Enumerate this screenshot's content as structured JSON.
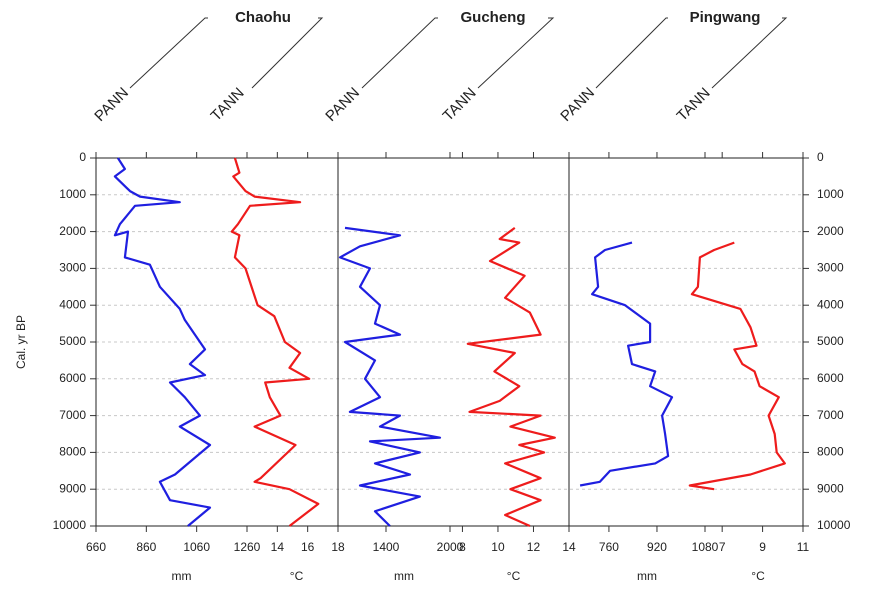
{
  "y_axis": {
    "label": "Cal. yr BP",
    "ylim": [
      0,
      10000
    ],
    "yticks": [
      0,
      1000,
      2000,
      3000,
      4000,
      5000,
      6000,
      7000,
      8000,
      9000,
      10000
    ],
    "grid": true
  },
  "site_labels": [
    "Chaohu",
    "Gucheng",
    "Pingwang"
  ],
  "chart_data": [
    {
      "type": "line",
      "title": "PANN",
      "x_label": "mm",
      "color": "#1f1fe0",
      "xlim": [
        660,
        1260
      ],
      "xticks": [
        660,
        860,
        1060,
        1260
      ],
      "ages": [
        0,
        300,
        500,
        900,
        1050,
        1200,
        1300,
        1800,
        2100,
        2000,
        2700,
        2900,
        3500,
        4100,
        4400,
        5200,
        5600,
        5900,
        6100,
        6500,
        7000,
        7300,
        7800,
        8600,
        8800,
        9300,
        9500,
        10000
      ],
      "values": [
        747,
        775,
        735,
        795,
        835,
        993,
        815,
        755,
        735,
        787,
        775,
        874,
        914,
        993,
        1013,
        1093,
        1033,
        1093,
        954,
        1013,
        1073,
        993,
        1113,
        974,
        914,
        954,
        1113,
        1025
      ]
    },
    {
      "type": "line",
      "title": "TANN",
      "x_label": "°C",
      "color": "#ee1c1c",
      "xlim": [
        12,
        18
      ],
      "xticks": [
        14,
        16,
        18
      ],
      "ages": [
        0,
        400,
        500,
        900,
        1050,
        1200,
        1300,
        1800,
        2000,
        2100,
        2700,
        3000,
        4000,
        4300,
        5000,
        5300,
        5700,
        6000,
        6100,
        6500,
        7000,
        7300,
        7800,
        8700,
        8800,
        9000,
        9400,
        10000
      ],
      "values": [
        11.2,
        11.5,
        11.1,
        11.9,
        12.5,
        15.5,
        12.2,
        11.4,
        11.0,
        11.5,
        11.2,
        11.9,
        12.7,
        13.8,
        14.5,
        15.5,
        14.8,
        16.1,
        13.2,
        13.5,
        14.2,
        12.5,
        15.2,
        12.9,
        12.5,
        14.8,
        16.7,
        14.8
      ]
    },
    {
      "type": "line",
      "title": "PANN",
      "x_label": "mm",
      "color": "#1f1fe0",
      "xlim": [
        950,
        2000
      ],
      "xticks": [
        1400,
        2000
      ],
      "ages": [
        1900,
        2100,
        2400,
        2700,
        3000,
        3500,
        4000,
        4500,
        4800,
        5000,
        5500,
        6000,
        6500,
        6900,
        7000,
        7300,
        7600,
        7700,
        8000,
        8300,
        8600,
        8900,
        9200,
        9600,
        10000
      ],
      "values": [
        1016,
        1531,
        1156,
        969,
        1250,
        1156,
        1344,
        1297,
        1531,
        1016,
        1297,
        1203,
        1344,
        1062,
        1531,
        1344,
        1906,
        1250,
        1718,
        1297,
        1625,
        1156,
        1718,
        1297,
        1437
      ]
    },
    {
      "type": "line",
      "title": "TANN",
      "x_label": "°C",
      "color": "#ee1c1c",
      "xlim": [
        7.3,
        14
      ],
      "xticks": [
        8,
        10,
        12,
        14
      ],
      "ages": [
        1900,
        2200,
        2300,
        2800,
        3200,
        3800,
        4200,
        4800,
        5050,
        5300,
        5800,
        6200,
        6600,
        6900,
        7000,
        7300,
        7600,
        7800,
        8000,
        8300,
        8700,
        9000,
        9300,
        9700,
        10000
      ],
      "values": [
        10.95,
        10.1,
        11.2,
        9.55,
        11.5,
        10.4,
        11.8,
        12.4,
        8.3,
        10.95,
        9.8,
        11.2,
        10.1,
        8.4,
        12.4,
        10.7,
        13.2,
        11.2,
        12.6,
        10.4,
        12.4,
        10.7,
        12.4,
        10.4,
        11.8
      ]
    },
    {
      "type": "line",
      "title": "PANN",
      "x_label": "mm",
      "color": "#1f1fe0",
      "xlim": [
        627,
        1080
      ],
      "xticks": [
        760,
        920,
        1080
      ],
      "ages": [
        2300,
        2500,
        2700,
        3500,
        3700,
        4000,
        4500,
        5000,
        5100,
        5600,
        5800,
        6200,
        6500,
        7000,
        7500,
        8100,
        8300,
        8500,
        8800,
        8900
      ],
      "values": [
        837,
        747,
        714,
        724,
        704,
        814,
        897,
        897,
        824,
        837,
        914,
        897,
        970,
        937,
        947,
        957,
        914,
        764,
        730,
        664
      ]
    },
    {
      "type": "line",
      "title": "TANN",
      "x_label": "°C",
      "color": "#ee1c1c",
      "xlim": [
        6.15,
        11
      ],
      "xticks": [
        7,
        9,
        11
      ],
      "ages": [
        2300,
        2500,
        2700,
        3500,
        3700,
        4100,
        4600,
        5100,
        5200,
        5600,
        5800,
        6200,
        6500,
        7000,
        7500,
        8000,
        8300,
        8600,
        8900,
        9000
      ],
      "values": [
        7.6,
        6.6,
        5.9,
        5.8,
        5.5,
        7.9,
        8.4,
        8.7,
        7.6,
        8.0,
        8.6,
        8.85,
        9.8,
        9.3,
        9.6,
        9.7,
        10.1,
        8.4,
        5.4,
        6.6
      ]
    }
  ]
}
